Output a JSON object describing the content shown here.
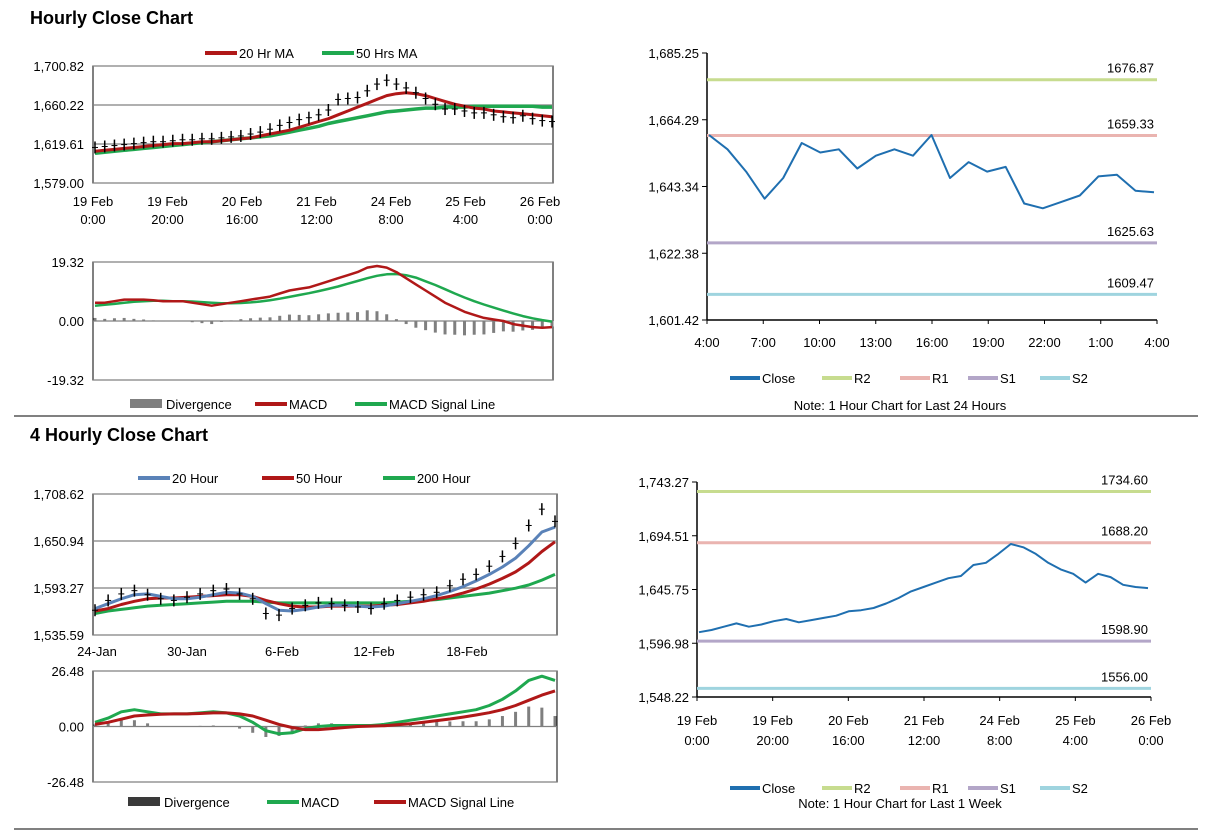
{
  "sections": {
    "hourly_title": "Hourly Close Chart",
    "four_hourly_title": "4 Hourly Close Chart"
  },
  "colors": {
    "red": "#b01818",
    "green": "#1fa84f",
    "blue": "#5a82b8",
    "close": "#1f6fb0",
    "r2": "#c7dc8f",
    "r1": "#eab4b0",
    "s1": "#b3a6c8",
    "s2": "#9fd4df",
    "divergence": "#7f7f7f",
    "grid": "#808080"
  },
  "chart_data": [
    {
      "id": "hourly_price",
      "type": "line",
      "legend": [
        "20 Hr MA",
        "50 Hrs MA"
      ],
      "yticks": [
        "1,700.82",
        "1,660.22",
        "1,619.61",
        "1,579.00"
      ],
      "ylim": [
        1579.0,
        1700.82
      ],
      "xticks": [
        [
          "19 Feb",
          "0:00"
        ],
        [
          "19 Feb",
          "20:00"
        ],
        [
          "20 Feb",
          "16:00"
        ],
        [
          "21 Feb",
          "12:00"
        ],
        [
          "24 Feb",
          "8:00"
        ],
        [
          "25 Feb",
          "4:00"
        ],
        [
          "26 Feb",
          "0:00"
        ]
      ],
      "price": [
        1616,
        1617,
        1618,
        1619,
        1620,
        1621,
        1622,
        1622,
        1623,
        1624,
        1624,
        1625,
        1625,
        1626,
        1627,
        1628,
        1630,
        1632,
        1635,
        1639,
        1642,
        1645,
        1647,
        1650,
        1655,
        1666,
        1667,
        1668,
        1675,
        1682,
        1686,
        1682,
        1678,
        1673,
        1667,
        1661,
        1656,
        1656,
        1654,
        1652,
        1652,
        1650,
        1648,
        1647,
        1649,
        1646,
        1644,
        1643
      ],
      "ma20": [
        1612,
        1613,
        1614,
        1615,
        1616,
        1617,
        1618,
        1619,
        1620,
        1620,
        1621,
        1622,
        1622,
        1623,
        1624,
        1625,
        1626,
        1628,
        1630,
        1632,
        1634,
        1637,
        1640,
        1643,
        1646,
        1650,
        1654,
        1658,
        1662,
        1666,
        1670,
        1672,
        1673,
        1672,
        1670,
        1667,
        1664,
        1661,
        1659,
        1657,
        1656,
        1654,
        1653,
        1652,
        1651,
        1650,
        1649,
        1648
      ],
      "ma50": [
        1610,
        1611,
        1612,
        1613,
        1614,
        1615,
        1616,
        1617,
        1618,
        1619,
        1620,
        1621,
        1622,
        1623,
        1624,
        1625,
        1626,
        1627,
        1628,
        1630,
        1632,
        1634,
        1636,
        1638,
        1641,
        1643,
        1645,
        1647,
        1649,
        1651,
        1653,
        1654,
        1655,
        1656,
        1657,
        1657,
        1658,
        1658,
        1658,
        1659,
        1659,
        1659,
        1659,
        1659,
        1659,
        1659,
        1658,
        1658
      ]
    },
    {
      "id": "hourly_macd",
      "type": "bar+line",
      "legend": [
        "Divergence",
        "MACD",
        "MACD Signal Line"
      ],
      "yticks": [
        "19.32",
        "0.00",
        "-19.32"
      ],
      "ylim": [
        -19.32,
        19.32
      ],
      "macd": [
        6,
        6,
        6.5,
        7,
        7,
        7,
        6.8,
        6.5,
        6.5,
        6.5,
        6,
        5.5,
        5,
        5.5,
        6,
        6.5,
        7,
        7.5,
        8,
        9,
        10,
        10.5,
        11,
        12,
        13,
        14,
        15,
        16,
        17.5,
        18,
        17.5,
        16,
        14,
        12,
        10,
        8,
        6,
        4.5,
        3,
        2,
        1,
        0.5,
        0,
        -1,
        -1.5,
        -2,
        -2.2,
        -2
      ],
      "signal": [
        5,
        5.3,
        5.6,
        6,
        6.3,
        6.5,
        6.6,
        6.6,
        6.5,
        6.5,
        6.4,
        6.2,
        6,
        5.8,
        5.8,
        5.9,
        6.1,
        6.4,
        6.8,
        7.3,
        7.9,
        8.5,
        9.1,
        9.8,
        10.5,
        11.3,
        12.2,
        13.1,
        14,
        14.8,
        15.3,
        15.4,
        15,
        14.2,
        13,
        11.8,
        10.4,
        9,
        7.7,
        6.5,
        5.4,
        4.4,
        3.4,
        2.5,
        1.6,
        0.9,
        0.3,
        -0.2
      ],
      "divergence": [
        1,
        0.7,
        0.9,
        1,
        0.7,
        0.5,
        0.2,
        -0.1,
        0,
        0,
        -0.4,
        -0.7,
        -1,
        -0.3,
        0.2,
        0.6,
        0.9,
        1.1,
        1.2,
        1.7,
        2.1,
        2,
        1.9,
        2.2,
        2.5,
        2.7,
        2.8,
        2.9,
        3.5,
        3.2,
        2.2,
        0.6,
        -1,
        -2.2,
        -3,
        -3.8,
        -4.4,
        -4.5,
        -4.7,
        -4.5,
        -4.4,
        -3.9,
        -3.4,
        -3.5,
        -3.1,
        -2.9,
        -2.5,
        -1.8
      ]
    },
    {
      "id": "hourly_levels",
      "type": "line",
      "title": "",
      "legend": [
        "Close",
        "R2",
        "R1",
        "S1",
        "S2"
      ],
      "note": "Note: 1 Hour Chart for Last 24 Hours",
      "yticks": [
        "1,685.25",
        "1,664.29",
        "1,643.34",
        "1,622.38",
        "1,601.42"
      ],
      "ylim": [
        1601.42,
        1685.25
      ],
      "xticks": [
        "4:00",
        "7:00",
        "10:00",
        "13:00",
        "16:00",
        "19:00",
        "22:00",
        "1:00",
        "4:00"
      ],
      "levels": [
        {
          "name": "R2",
          "value": 1676.87,
          "label": "1676.87"
        },
        {
          "name": "R1",
          "value": 1659.33,
          "label": "1659.33"
        },
        {
          "name": "S1",
          "value": 1625.63,
          "label": "1625.63"
        },
        {
          "name": "S2",
          "value": 1609.47,
          "label": "1609.47"
        }
      ],
      "close": [
        1659.5,
        1655,
        1648,
        1639.5,
        1646,
        1657,
        1654,
        1655,
        1649,
        1653,
        1655,
        1653,
        1659.5,
        1646,
        1651,
        1648,
        1649.5,
        1638,
        1636.5,
        1638.5,
        1640.5,
        1646.5,
        1647,
        1642,
        1641.5
      ]
    },
    {
      "id": "four_hourly_price",
      "type": "line",
      "legend": [
        "20 Hour",
        "50 Hour",
        "200 Hour"
      ],
      "yticks": [
        "1,708.62",
        "1,650.94",
        "1,593.27",
        "1,535.59"
      ],
      "ylim": [
        1535.59,
        1708.62
      ],
      "xticks": [
        "24-Jan",
        "30-Jan",
        "6-Feb",
        "12-Feb",
        "18-Feb"
      ],
      "price": [
        1566,
        1578,
        1586,
        1590,
        1585,
        1580,
        1578,
        1582,
        1586,
        1590,
        1592,
        1586,
        1580,
        1562,
        1560,
        1568,
        1572,
        1575,
        1574,
        1572,
        1570,
        1568,
        1574,
        1578,
        1582,
        1585,
        1588,
        1596,
        1604,
        1610,
        1620,
        1632,
        1648,
        1670,
        1690,
        1675
      ],
      "ma20": [
        1568,
        1574,
        1580,
        1585,
        1586,
        1583,
        1580,
        1580,
        1582,
        1585,
        1588,
        1587,
        1583,
        1574,
        1566,
        1565,
        1567,
        1570,
        1572,
        1572,
        1571,
        1570,
        1571,
        1574,
        1577,
        1580,
        1584,
        1589,
        1595,
        1602,
        1610,
        1619,
        1630,
        1645,
        1662,
        1668
      ],
      "ma50": [
        1565,
        1568,
        1573,
        1577,
        1580,
        1581,
        1581,
        1582,
        1583,
        1584,
        1585,
        1585,
        1583,
        1578,
        1574,
        1571,
        1570,
        1570,
        1571,
        1571,
        1571,
        1571,
        1572,
        1573,
        1575,
        1577,
        1580,
        1583,
        1587,
        1592,
        1598,
        1605,
        1613,
        1624,
        1638,
        1650
      ],
      "ma200": [
        1562,
        1565,
        1567,
        1569,
        1571,
        1572,
        1573,
        1574,
        1575,
        1576,
        1577,
        1577,
        1577,
        1576,
        1575,
        1575,
        1575,
        1575,
        1575,
        1575,
        1575,
        1575,
        1575,
        1576,
        1577,
        1578,
        1579,
        1581,
        1583,
        1585,
        1587,
        1590,
        1593,
        1597,
        1603,
        1610
      ]
    },
    {
      "id": "four_hourly_macd",
      "type": "bar+line",
      "legend": [
        "Divergence",
        "MACD",
        "MACD Signal Line"
      ],
      "yticks": [
        "26.48",
        "0.00",
        "-26.48"
      ],
      "ylim": [
        -26.48,
        26.48
      ],
      "macd": [
        2,
        4,
        7,
        8,
        7,
        6,
        6,
        6,
        6.5,
        7,
        6.5,
        5,
        2,
        -2,
        -3.5,
        -3,
        -1,
        0,
        0.5,
        0.5,
        0.5,
        0.5,
        1,
        2,
        3,
        4,
        5,
        6,
        7,
        8,
        10,
        13,
        17,
        22,
        24,
        22
      ],
      "signal": [
        1,
        2,
        3.5,
        5,
        5.5,
        5.8,
        6,
        6,
        6.2,
        6.5,
        6.5,
        6,
        5,
        3,
        1,
        -0.5,
        -1.5,
        -1.5,
        -1,
        -0.5,
        0,
        0.2,
        0.4,
        0.8,
        1.3,
        2,
        2.8,
        3.6,
        4.5,
        5.5,
        6.6,
        8,
        10,
        12.5,
        15,
        17
      ],
      "divergence": [
        1,
        2,
        3.5,
        3,
        1.5,
        0.2,
        0,
        0,
        0.3,
        0.5,
        0,
        -1,
        -3,
        -5,
        -4.5,
        -2.5,
        0.5,
        1.5,
        1.5,
        1,
        0.5,
        0.3,
        0.6,
        1.2,
        1.7,
        2,
        2.2,
        2.4,
        2.5,
        2.5,
        3.4,
        5,
        7,
        9.5,
        9,
        5
      ]
    },
    {
      "id": "weekly_levels",
      "type": "line",
      "title": "",
      "legend": [
        "Close",
        "R2",
        "R1",
        "S1",
        "S2"
      ],
      "note": "Note: 1 Hour Chart for Last 1 Week",
      "yticks": [
        "1,743.27",
        "1,694.51",
        "1,645.75",
        "1,596.98",
        "1,548.22"
      ],
      "ylim": [
        1548.22,
        1743.27
      ],
      "xticks": [
        [
          "19 Feb",
          "0:00"
        ],
        [
          "19 Feb",
          "20:00"
        ],
        [
          "20 Feb",
          "16:00"
        ],
        [
          "21 Feb",
          "12:00"
        ],
        [
          "24 Feb",
          "8:00"
        ],
        [
          "25 Feb",
          "4:00"
        ],
        [
          "26 Feb",
          "0:00"
        ]
      ],
      "levels": [
        {
          "name": "R2",
          "value": 1734.6,
          "label": "1734.60"
        },
        {
          "name": "R1",
          "value": 1688.2,
          "label": "1688.20"
        },
        {
          "name": "S1",
          "value": 1598.9,
          "label": "1598.90"
        },
        {
          "name": "S2",
          "value": 1556.0,
          "label": "1556.00"
        }
      ],
      "close": [
        1607,
        1609,
        1612,
        1615,
        1612,
        1614,
        1617,
        1619,
        1616,
        1618,
        1620,
        1622,
        1626,
        1627,
        1629,
        1633,
        1638,
        1644,
        1648,
        1652,
        1656,
        1658,
        1668,
        1670,
        1678,
        1687,
        1684,
        1678,
        1670,
        1664,
        1660,
        1652,
        1660,
        1657,
        1650,
        1648,
        1647
      ]
    }
  ]
}
